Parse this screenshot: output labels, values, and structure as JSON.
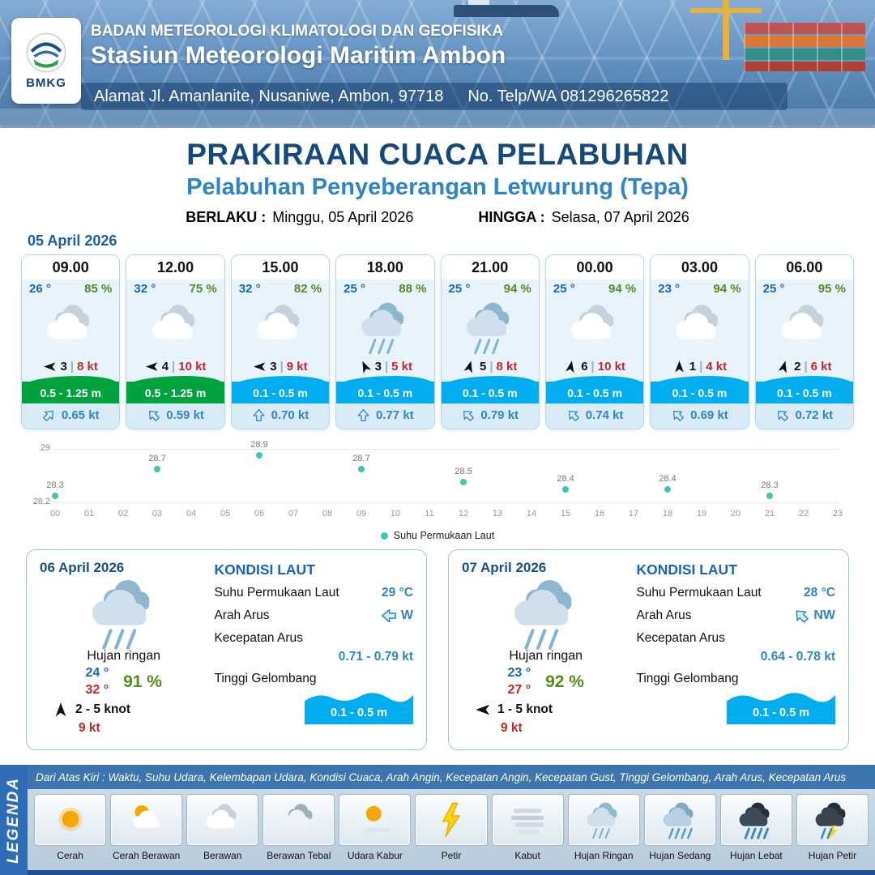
{
  "header": {
    "logo_text": "BMKG",
    "agency": "BADAN METEOROLOGI KLIMATOLOGI DAN GEOFISIKA",
    "station": "Stasiun Meteorologi Maritim Ambon",
    "address": "Alamat Jl. Amanlanite, Nusaniwe, Ambon, 97718",
    "phone": "No. Telp/WA  081296265822"
  },
  "title": {
    "main": "PRAKIRAAN CUACA PELABUHAN",
    "subtitle": "Pelabuhan Penyeberangan Letwurung (Tepa)",
    "berlaku_label": "BERLAKU :",
    "berlaku_value": "Minggu, 05 April 2026",
    "hingga_label": "HINGGA :",
    "hingga_value": "Selasa, 07 April 2026"
  },
  "ui": {
    "divider": "|"
  },
  "hourly_date": "05 April 2026",
  "hourly": [
    {
      "time": "09.00",
      "temp": "26 °",
      "humidity": "85 %",
      "icon": "berawan",
      "wind_deg": 270,
      "wind_scale": "3",
      "wind_speed": "8 kt",
      "wave": "0.5 - 1.25 m",
      "wave_level": "green",
      "current_deg": 45,
      "current": "0.65 kt"
    },
    {
      "time": "12.00",
      "temp": "32 °",
      "humidity": "75 %",
      "icon": "berawan",
      "wind_deg": 270,
      "wind_scale": "4",
      "wind_speed": "10 kt",
      "wave": "0.5 - 1.25 m",
      "wave_level": "green",
      "current_deg": 315,
      "current": "0.59 kt"
    },
    {
      "time": "15.00",
      "temp": "32 °",
      "humidity": "82 %",
      "icon": "berawan",
      "wind_deg": 270,
      "wind_scale": "3",
      "wind_speed": "9 kt",
      "wave": "0.1 - 0.5 m",
      "wave_level": "blue",
      "current_deg": 0,
      "current": "0.70 kt"
    },
    {
      "time": "18.00",
      "temp": "25 °",
      "humidity": "88 %",
      "icon": "hujan-ringan",
      "wind_deg": 335,
      "wind_scale": "3",
      "wind_speed": "5 kt",
      "wave": "0.1 - 0.5 m",
      "wave_level": "blue",
      "current_deg": 0,
      "current": "0.77 kt"
    },
    {
      "time": "21.00",
      "temp": "25 °",
      "humidity": "94 %",
      "icon": "hujan-ringan",
      "wind_deg": 15,
      "wind_scale": "5",
      "wind_speed": "8 kt",
      "wave": "0.1 - 0.5 m",
      "wave_level": "blue",
      "current_deg": 315,
      "current": "0.79 kt"
    },
    {
      "time": "00.00",
      "temp": "25 °",
      "humidity": "94 %",
      "icon": "berawan",
      "wind_deg": 10,
      "wind_scale": "6",
      "wind_speed": "10 kt",
      "wave": "0.1 - 0.5 m",
      "wave_level": "blue",
      "current_deg": 315,
      "current": "0.74 kt"
    },
    {
      "time": "03.00",
      "temp": "23 °",
      "humidity": "94 %",
      "icon": "berawan",
      "wind_deg": 0,
      "wind_scale": "1",
      "wind_speed": "4 kt",
      "wave": "0.1 - 0.5 m",
      "wave_level": "blue",
      "current_deg": 315,
      "current": "0.69 kt"
    },
    {
      "time": "06.00",
      "temp": "25 °",
      "humidity": "95 %",
      "icon": "berawan",
      "wind_deg": 15,
      "wind_scale": "2",
      "wind_speed": "6 kt",
      "wave": "0.1 - 0.5 m",
      "wave_level": "blue",
      "current_deg": 315,
      "current": "0.72 kt"
    }
  ],
  "chart_data": {
    "type": "scatter",
    "title": "",
    "series_label": "Suhu Permukaan Laut",
    "x": [
      0,
      3,
      6,
      9,
      12,
      15,
      18,
      21
    ],
    "values": [
      28.3,
      28.7,
      28.9,
      28.7,
      28.5,
      28.4,
      28.4,
      28.3
    ],
    "ylim": [
      28.2,
      29
    ],
    "y_ticks": [
      "29",
      "28.2"
    ],
    "x_ticks": [
      "00",
      "01",
      "02",
      "03",
      "04",
      "05",
      "06",
      "07",
      "08",
      "09",
      "10",
      "11",
      "12",
      "13",
      "14",
      "15",
      "16",
      "17",
      "18",
      "19",
      "20",
      "21",
      "22",
      "23"
    ],
    "dot_color": "#3cc8b4",
    "legend_position": "bottom",
    "grid": true
  },
  "daily": [
    {
      "date": "06 April 2026",
      "icon": "hujan-ringan",
      "condition": "Hujan ringan",
      "temp_min": "24 °",
      "temp_max": "32 °",
      "humidity": "91 %",
      "wind_deg": 0,
      "wind_range": "2 - 5 knot",
      "gust": "9 kt",
      "sea": {
        "heading": "KONDISI LAUT",
        "sst_label": "Suhu Permukaan Laut",
        "sst": "29 °C",
        "current_dir_label": "Arah Arus",
        "current_dir": "W",
        "current_deg": 270,
        "current_speed_label": "Kecepatan Arus",
        "current_speed": "0.71 - 0.79 kt",
        "wave_label": "Tinggi Gelombang",
        "wave": "0.1 - 0.5 m"
      }
    },
    {
      "date": "07 April 2026",
      "icon": "hujan-ringan",
      "condition": "Hujan ringan",
      "temp_min": "23 °",
      "temp_max": "27 °",
      "humidity": "92 %",
      "wind_deg": 270,
      "wind_range": "1 - 5 knot",
      "gust": "9 kt",
      "sea": {
        "heading": "KONDISI LAUT",
        "sst_label": "Suhu Permukaan Laut",
        "sst": "28 °C",
        "current_dir_label": "Arah Arus",
        "current_dir": "NW",
        "current_deg": 315,
        "current_speed_label": "Kecepatan Arus",
        "current_speed": "0.64 - 0.78 kt",
        "wave_label": "Tinggi Gelombang",
        "wave": "0.1 - 0.5 m"
      }
    }
  ],
  "legend": {
    "vertical_label": "LEGENDA",
    "caption": "Dari Atas Kiri : Waktu, Suhu Udara, Kelembapan Udara, Kondisi Cuaca, Arah Angin, Kecepatan Angin, Kecepatan Gust, Tinggi Gelombang, Arah Arus, Kecepatan Arus",
    "items": [
      {
        "label": "Cerah",
        "icon": "cerah"
      },
      {
        "label": "Cerah Berawan",
        "icon": "cerah-berawan"
      },
      {
        "label": "Berawan",
        "icon": "berawan"
      },
      {
        "label": "Berawan Tebal",
        "icon": "berawan-tebal"
      },
      {
        "label": "Udara Kabur",
        "icon": "udara-kabur"
      },
      {
        "label": "Petir",
        "icon": "petir"
      },
      {
        "label": "Kabut",
        "icon": "kabut"
      },
      {
        "label": "Hujan Ringan",
        "icon": "hujan-ringan"
      },
      {
        "label": "Hujan Sedang",
        "icon": "hujan-sedang"
      },
      {
        "label": "Hujan Lebat",
        "icon": "hujan-lebat"
      },
      {
        "label": "Hujan Petir",
        "icon": "hujan-petir"
      }
    ]
  }
}
